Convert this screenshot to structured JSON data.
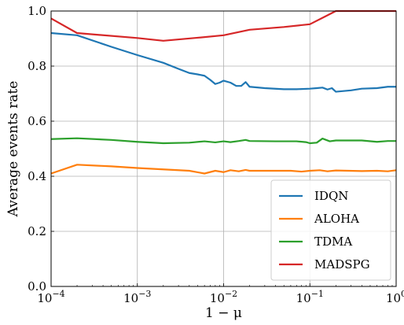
{
  "chart_data": {
    "type": "line",
    "xlabel": "1 − μ",
    "ylabel": "Average events rate",
    "xscale": "log",
    "xlim": [
      0.0001,
      1
    ],
    "ylim": [
      0.0,
      1.0
    ],
    "grid": true,
    "legend_position": "lower-right",
    "x_ticks": [
      {
        "value": 0.0001,
        "base": "10",
        "exp": "−4"
      },
      {
        "value": 0.001,
        "base": "10",
        "exp": "−3"
      },
      {
        "value": 0.01,
        "base": "10",
        "exp": "−2"
      },
      {
        "value": 0.1,
        "base": "10",
        "exp": "−1"
      },
      {
        "value": 1,
        "base": "10",
        "exp": "0"
      }
    ],
    "y_ticks": [
      {
        "value": 0.0,
        "label": "0.0"
      },
      {
        "value": 0.2,
        "label": "0.2"
      },
      {
        "value": 0.4,
        "label": "0.4"
      },
      {
        "value": 0.6,
        "label": "0.6"
      },
      {
        "value": 0.8,
        "label": "0.8"
      },
      {
        "value": 1.0,
        "label": "1.0"
      }
    ],
    "series": [
      {
        "name": "IDQN",
        "color": "#1f77b4",
        "points": [
          [
            0.0001,
            0.92
          ],
          [
            0.0002,
            0.912
          ],
          [
            0.0005,
            0.87
          ],
          [
            0.001,
            0.84
          ],
          [
            0.002,
            0.812
          ],
          [
            0.003,
            0.79
          ],
          [
            0.004,
            0.775
          ],
          [
            0.005,
            0.77
          ],
          [
            0.006,
            0.765
          ],
          [
            0.007,
            0.75
          ],
          [
            0.008,
            0.735
          ],
          [
            0.009,
            0.74
          ],
          [
            0.01,
            0.747
          ],
          [
            0.012,
            0.74
          ],
          [
            0.014,
            0.728
          ],
          [
            0.016,
            0.728
          ],
          [
            0.018,
            0.742
          ],
          [
            0.02,
            0.725
          ],
          [
            0.03,
            0.72
          ],
          [
            0.05,
            0.716
          ],
          [
            0.07,
            0.716
          ],
          [
            0.1,
            0.718
          ],
          [
            0.12,
            0.72
          ],
          [
            0.14,
            0.722
          ],
          [
            0.16,
            0.715
          ],
          [
            0.18,
            0.72
          ],
          [
            0.2,
            0.707
          ],
          [
            0.3,
            0.712
          ],
          [
            0.4,
            0.718
          ],
          [
            0.6,
            0.72
          ],
          [
            0.8,
            0.725
          ],
          [
            1.0,
            0.725
          ]
        ]
      },
      {
        "name": "ALOHA",
        "color": "#ff7f0e",
        "points": [
          [
            0.0001,
            0.41
          ],
          [
            0.0002,
            0.442
          ],
          [
            0.0005,
            0.436
          ],
          [
            0.001,
            0.43
          ],
          [
            0.002,
            0.425
          ],
          [
            0.004,
            0.42
          ],
          [
            0.006,
            0.41
          ],
          [
            0.008,
            0.42
          ],
          [
            0.01,
            0.415
          ],
          [
            0.012,
            0.422
          ],
          [
            0.015,
            0.418
          ],
          [
            0.018,
            0.423
          ],
          [
            0.02,
            0.42
          ],
          [
            0.04,
            0.42
          ],
          [
            0.06,
            0.42
          ],
          [
            0.08,
            0.417
          ],
          [
            0.1,
            0.42
          ],
          [
            0.13,
            0.422
          ],
          [
            0.16,
            0.418
          ],
          [
            0.2,
            0.421
          ],
          [
            0.4,
            0.419
          ],
          [
            0.6,
            0.42
          ],
          [
            0.8,
            0.418
          ],
          [
            1.0,
            0.422
          ]
        ]
      },
      {
        "name": "TDMA",
        "color": "#2ca02c",
        "points": [
          [
            0.0001,
            0.535
          ],
          [
            0.0002,
            0.538
          ],
          [
            0.0005,
            0.532
          ],
          [
            0.001,
            0.525
          ],
          [
            0.002,
            0.52
          ],
          [
            0.004,
            0.522
          ],
          [
            0.006,
            0.527
          ],
          [
            0.008,
            0.523
          ],
          [
            0.01,
            0.527
          ],
          [
            0.012,
            0.524
          ],
          [
            0.015,
            0.528
          ],
          [
            0.018,
            0.532
          ],
          [
            0.02,
            0.528
          ],
          [
            0.04,
            0.527
          ],
          [
            0.07,
            0.527
          ],
          [
            0.09,
            0.524
          ],
          [
            0.1,
            0.52
          ],
          [
            0.12,
            0.522
          ],
          [
            0.14,
            0.537
          ],
          [
            0.17,
            0.527
          ],
          [
            0.2,
            0.53
          ],
          [
            0.4,
            0.53
          ],
          [
            0.6,
            0.525
          ],
          [
            0.8,
            0.528
          ],
          [
            1.0,
            0.528
          ]
        ]
      },
      {
        "name": "MADSPG",
        "color": "#d62728",
        "points": [
          [
            0.0001,
            0.973
          ],
          [
            0.0002,
            0.92
          ],
          [
            0.001,
            0.902
          ],
          [
            0.002,
            0.892
          ],
          [
            0.005,
            0.903
          ],
          [
            0.01,
            0.912
          ],
          [
            0.02,
            0.932
          ],
          [
            0.05,
            0.942
          ],
          [
            0.1,
            0.952
          ],
          [
            0.15,
            0.98
          ],
          [
            0.2,
            1.0
          ],
          [
            0.5,
            1.0
          ],
          [
            1.0,
            1.0
          ]
        ]
      }
    ]
  }
}
